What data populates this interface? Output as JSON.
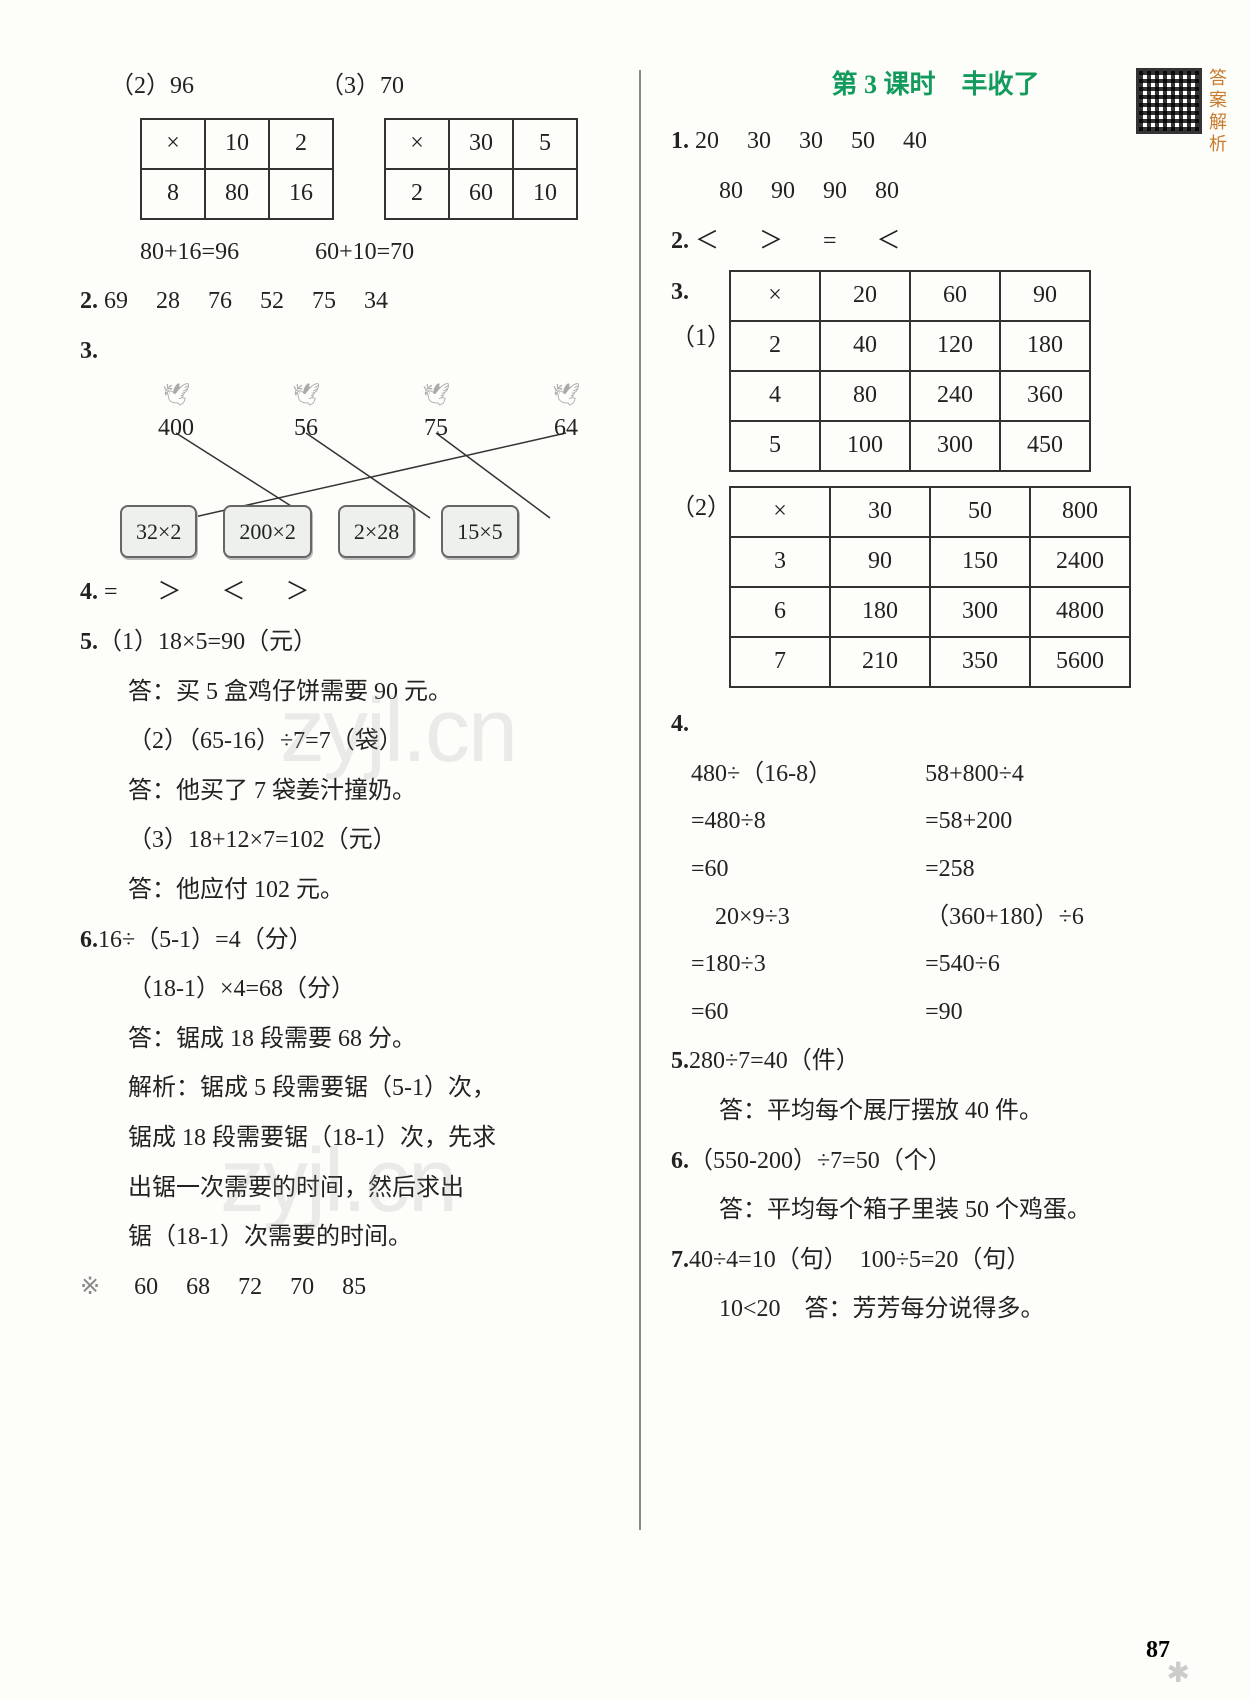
{
  "side_label": "答案解析",
  "page_number": "87",
  "watermark": "zyjl.cn",
  "left": {
    "q1": {
      "p2_label": "（2）96",
      "p3_label": "（3）70",
      "table_a": {
        "head": [
          "×",
          "10",
          "2"
        ],
        "row": [
          "8",
          "80",
          "16"
        ]
      },
      "table_b": {
        "head": [
          "×",
          "30",
          "5"
        ],
        "row": [
          "2",
          "60",
          "10"
        ]
      },
      "eq_a": "80+16=96",
      "eq_b": "60+10=70"
    },
    "q2": {
      "label": "2.",
      "vals": [
        "69",
        "28",
        "76",
        "52",
        "75",
        "34"
      ]
    },
    "q3": {
      "label": "3.",
      "top": [
        "400",
        "56",
        "75",
        "64"
      ],
      "bot": [
        "32×2",
        "200×2",
        "2×28",
        "15×5"
      ],
      "lines": [
        [
          0,
          1
        ],
        [
          1,
          2
        ],
        [
          2,
          3
        ],
        [
          3,
          0
        ]
      ]
    },
    "q4": {
      "label": "4.",
      "vals": [
        "=",
        "＞",
        "＜",
        "＞"
      ]
    },
    "q5": {
      "label": "5.",
      "l1": "（1）18×5=90（元）",
      "a1": "答：买 5 盒鸡仔饼需要 90 元。",
      "l2": "（2）（65-16）÷7=7（袋）",
      "a2": "答：他买了 7 袋姜汁撞奶。",
      "l3": "（3）18+12×7=102（元）",
      "a3": "答：他应付 102 元。"
    },
    "q6": {
      "label": "6.",
      "l1": "16÷（5-1）=4（分）",
      "l2": "（18-1）×4=68（分）",
      "a1": "答：锯成 18 段需要 68 分。",
      "ex1": "解析：锯成 5 段需要锯（5-1）次，",
      "ex2": "锯成 18 段需要锯（18-1）次，先求",
      "ex3": "出锯一次需要的时间，然后求出",
      "ex4": "锯（18-1）次需要的时间。"
    },
    "qstar": {
      "label": "※",
      "vals": [
        "60",
        "68",
        "72",
        "70",
        "85"
      ]
    }
  },
  "right": {
    "title": "第 3 课时　丰收了",
    "q1": {
      "label": "1.",
      "r1": [
        "20",
        "30",
        "30",
        "50",
        "40"
      ],
      "r2": [
        "80",
        "90",
        "90",
        "80"
      ]
    },
    "q2": {
      "label": "2.",
      "vals": [
        "＜",
        "＞",
        "=",
        "＜"
      ]
    },
    "q3": {
      "label": "3.",
      "t1_label": "（1）",
      "t1": {
        "head": [
          "×",
          "20",
          "60",
          "90"
        ],
        "rows": [
          [
            "2",
            "40",
            "120",
            "180"
          ],
          [
            "4",
            "80",
            "240",
            "360"
          ],
          [
            "5",
            "100",
            "300",
            "450"
          ]
        ]
      },
      "t2_label": "（2）",
      "t2": {
        "head": [
          "×",
          "30",
          "50",
          "800"
        ],
        "rows": [
          [
            "3",
            "90",
            "150",
            "2400"
          ],
          [
            "6",
            "180",
            "300",
            "4800"
          ],
          [
            "7",
            "210",
            "350",
            "5600"
          ]
        ]
      }
    },
    "q4": {
      "label": "4.",
      "col_a": [
        "480÷（16-8）",
        "=480÷8",
        "=60",
        "　20×9÷3",
        "=180÷3",
        "=60"
      ],
      "col_b": [
        "58+800÷4",
        "=58+200",
        "=258",
        "（360+180）÷6",
        "=540÷6",
        "=90"
      ]
    },
    "q5": {
      "label": "5.",
      "l1": "280÷7=40（件）",
      "a1": "答：平均每个展厅摆放 40 件。"
    },
    "q6": {
      "label": "6.",
      "l1": "（550-200）÷7=50（个）",
      "a1": "答：平均每个箱子里装 50 个鸡蛋。"
    },
    "q7": {
      "label": "7.",
      "l1": "40÷4=10（句）　100÷5=20（句）",
      "l2": "10<20　答：芳芳每分说得多。"
    }
  }
}
